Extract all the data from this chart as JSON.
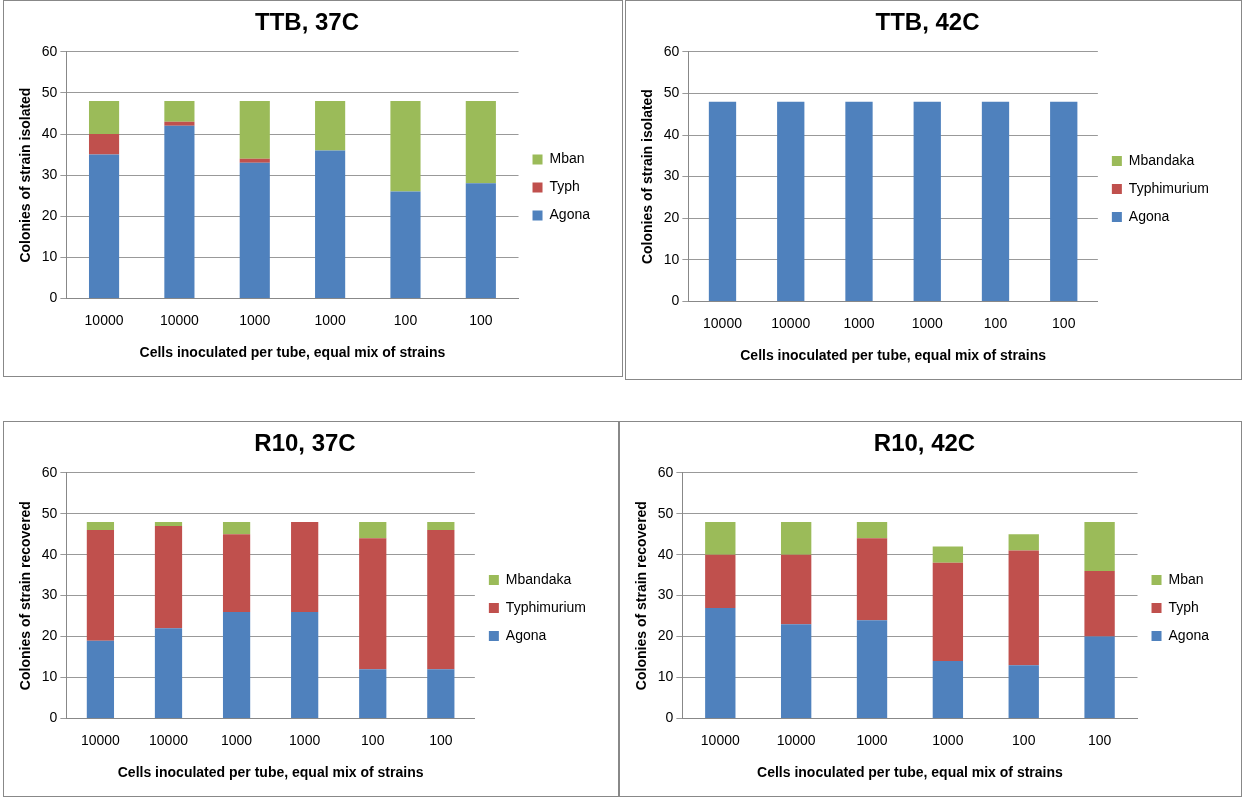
{
  "chart_data": [
    {
      "type": "bar",
      "stacked": true,
      "title": "TTB, 37C",
      "xlabel": "Cells inoculated per tube, equal mix of strains",
      "ylabel": "Colonies of strain isolated",
      "categories": [
        "10000",
        "10000",
        "1000",
        "1000",
        "100",
        "100"
      ],
      "ylim": [
        0,
        60
      ],
      "yticks": [
        0,
        10,
        20,
        30,
        40,
        50,
        60
      ],
      "grid": "y",
      "legend": "right",
      "series": [
        {
          "name": "Agona",
          "color": "#4f81bd",
          "values": [
            35,
            42,
            33,
            36,
            26,
            28
          ]
        },
        {
          "name": "Typh",
          "color": "#c0504d",
          "values": [
            5,
            1,
            1,
            0,
            0,
            0
          ]
        },
        {
          "name": "Mban",
          "color": "#9bbb59",
          "values": [
            8,
            5,
            14,
            12,
            22,
            20
          ]
        }
      ]
    },
    {
      "type": "bar",
      "stacked": true,
      "title": "TTB, 42C",
      "xlabel": "Cells inoculated per tube, equal mix of strains",
      "ylabel": "Colonies of strain isolated",
      "categories": [
        "10000",
        "10000",
        "1000",
        "1000",
        "100",
        "100"
      ],
      "ylim": [
        0,
        60
      ],
      "yticks": [
        0,
        10,
        20,
        30,
        40,
        50,
        60
      ],
      "grid": "y",
      "legend": "right",
      "series": [
        {
          "name": "Agona",
          "color": "#4f81bd",
          "values": [
            48,
            48,
            48,
            48,
            48,
            48
          ]
        },
        {
          "name": "Typhimurium",
          "color": "#c0504d",
          "values": [
            0,
            0,
            0,
            0,
            0,
            0
          ]
        },
        {
          "name": "Mbandaka",
          "color": "#9bbb59",
          "values": [
            0,
            0,
            0,
            0,
            0,
            0
          ]
        }
      ]
    },
    {
      "type": "bar",
      "stacked": true,
      "title": "R10, 37C",
      "xlabel": "Cells inoculated per tube, equal mix of strains",
      "ylabel": "Colonies of strain recovered",
      "categories": [
        "10000",
        "10000",
        "1000",
        "1000",
        "100",
        "100"
      ],
      "ylim": [
        0,
        60
      ],
      "yticks": [
        0,
        10,
        20,
        30,
        40,
        50,
        60
      ],
      "grid": "y",
      "legend": "right",
      "series": [
        {
          "name": "Agona",
          "color": "#4f81bd",
          "values": [
            19,
            22,
            26,
            26,
            12,
            12
          ]
        },
        {
          "name": "Typhimurium",
          "color": "#c0504d",
          "values": [
            27,
            25,
            19,
            22,
            32,
            34
          ]
        },
        {
          "name": "Mbandaka",
          "color": "#9bbb59",
          "values": [
            2,
            1,
            3,
            0,
            4,
            2
          ]
        }
      ]
    },
    {
      "type": "bar",
      "stacked": true,
      "title": "R10, 42C",
      "xlabel": "Cells inoculated per tube, equal mix of strains",
      "ylabel": "Colonies of strain recovered",
      "categories": [
        "10000",
        "10000",
        "1000",
        "1000",
        "100",
        "100"
      ],
      "ylim": [
        0,
        60
      ],
      "yticks": [
        0,
        10,
        20,
        30,
        40,
        50,
        60
      ],
      "grid": "y",
      "legend": "right",
      "series": [
        {
          "name": "Agona",
          "color": "#4f81bd",
          "values": [
            27,
            23,
            24,
            14,
            13,
            20
          ]
        },
        {
          "name": "Typh",
          "color": "#c0504d",
          "values": [
            13,
            17,
            20,
            24,
            28,
            16
          ]
        },
        {
          "name": "Mban",
          "color": "#9bbb59",
          "values": [
            8,
            8,
            4,
            4,
            4,
            12
          ]
        }
      ]
    }
  ]
}
